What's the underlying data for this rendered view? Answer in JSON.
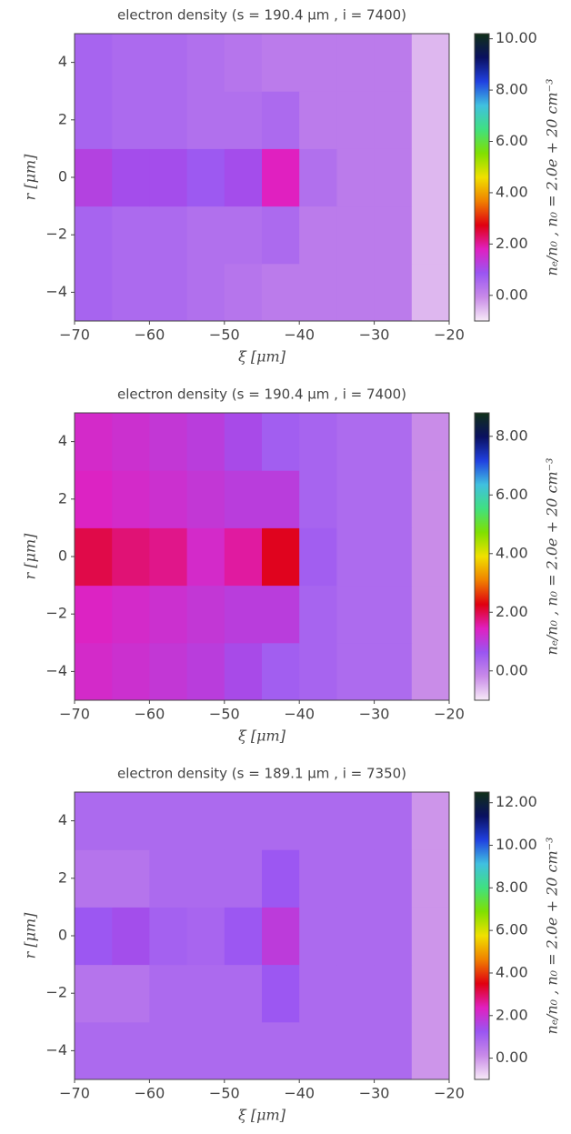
{
  "chart_data": [
    {
      "type": "heatmap",
      "title": "electron density (s = 190.4 μm , i = 7400)",
      "x_label": "ξ [μm]",
      "y_label": "r [μm]",
      "colorbar_label": "nₑ/n₀ , n₀ = 2.0e + 20 cm⁻³",
      "x": [
        -67.5,
        -62.5,
        -57.5,
        -52.5,
        -47.5,
        -42.5,
        -37.5,
        -32.5,
        -27.5,
        -22.5
      ],
      "y": [
        -4,
        -2,
        0,
        2,
        4
      ],
      "z": [
        [
          0.6,
          0.5,
          0.5,
          0.4,
          0.3,
          0.2,
          0.2,
          0.2,
          0.2,
          -0.5
        ],
        [
          0.6,
          0.5,
          0.5,
          0.4,
          0.4,
          0.5,
          0.2,
          0.2,
          0.2,
          -0.5
        ],
        [
          1.2,
          1.0,
          1.0,
          0.8,
          1.0,
          1.8,
          0.4,
          0.2,
          0.2,
          -0.5
        ],
        [
          0.6,
          0.5,
          0.5,
          0.4,
          0.4,
          0.5,
          0.2,
          0.2,
          0.2,
          -0.5
        ],
        [
          0.6,
          0.5,
          0.5,
          0.4,
          0.3,
          0.2,
          0.2,
          0.2,
          0.2,
          -0.5
        ]
      ],
      "xlim": [
        -70,
        -20
      ],
      "ylim": [
        -5,
        5
      ],
      "clim": [
        -1,
        10.2
      ],
      "xticks": [
        {
          "value": -70,
          "label": "−70"
        },
        {
          "value": -60,
          "label": "−60"
        },
        {
          "value": -50,
          "label": "−50"
        },
        {
          "value": -40,
          "label": "−40"
        },
        {
          "value": -30,
          "label": "−30"
        },
        {
          "value": -20,
          "label": "−20"
        }
      ],
      "yticks": [
        {
          "value": -4,
          "label": "−4"
        },
        {
          "value": -2,
          "label": "−2"
        },
        0,
        2,
        4
      ],
      "cticks": [
        {
          "value": 0,
          "label": "0.00"
        },
        {
          "value": 2,
          "label": "2.00"
        },
        {
          "value": 4,
          "label": "4.00"
        },
        {
          "value": 6,
          "label": "6.00"
        },
        {
          "value": 8,
          "label": "8.00"
        },
        {
          "value": 10,
          "label": "10.00"
        }
      ],
      "colorscale": [
        "#f7eaf7",
        "#c88ae8",
        "#9a55f2",
        "#e020c0",
        "#e00010",
        "#f08000",
        "#f0e000",
        "#80e000",
        "#40e080",
        "#40c0e0",
        "#2040e0",
        "#0a1060",
        "#103018"
      ]
    },
    {
      "type": "heatmap",
      "title": "electron density (s = 190.4 μm , i = 7400)",
      "x_label": "ξ [μm]",
      "y_label": "r [μm]",
      "colorbar_label": "nₑ/n₀ , n₀ = 2.0e + 20 cm⁻³",
      "x": [
        -67.5,
        -62.5,
        -57.5,
        -52.5,
        -47.5,
        -42.5,
        -37.5,
        -32.5,
        -27.5,
        -22.5
      ],
      "y": [
        -4,
        -2,
        0,
        2,
        4
      ],
      "z": [
        [
          1.3,
          1.2,
          1.1,
          1.0,
          0.8,
          0.5,
          0.4,
          0.3,
          0.3,
          -0.2
        ],
        [
          1.4,
          1.3,
          1.2,
          1.1,
          1.0,
          1.0,
          0.4,
          0.3,
          0.3,
          -0.2
        ],
        [
          2.0,
          1.8,
          1.7,
          1.3,
          1.6,
          2.2,
          0.5,
          0.3,
          0.3,
          -0.2
        ],
        [
          1.4,
          1.3,
          1.2,
          1.1,
          1.0,
          1.0,
          0.4,
          0.3,
          0.3,
          -0.2
        ],
        [
          1.3,
          1.2,
          1.1,
          1.0,
          0.8,
          0.5,
          0.4,
          0.3,
          0.3,
          -0.2
        ]
      ],
      "xlim": [
        -70,
        -20
      ],
      "ylim": [
        -5,
        5
      ],
      "clim": [
        -1,
        8.8
      ],
      "xticks": [
        {
          "value": -70,
          "label": "−70"
        },
        {
          "value": -60,
          "label": "−60"
        },
        {
          "value": -50,
          "label": "−50"
        },
        {
          "value": -40,
          "label": "−40"
        },
        {
          "value": -30,
          "label": "−30"
        },
        {
          "value": -20,
          "label": "−20"
        }
      ],
      "yticks": [
        {
          "value": -4,
          "label": "−4"
        },
        {
          "value": -2,
          "label": "−2"
        },
        0,
        2,
        4
      ],
      "cticks": [
        {
          "value": 0,
          "label": "0.00"
        },
        {
          "value": 2,
          "label": "2.00"
        },
        {
          "value": 4,
          "label": "4.00"
        },
        {
          "value": 6,
          "label": "6.00"
        },
        {
          "value": 8,
          "label": "8.00"
        }
      ],
      "colorscale": [
        "#f7eaf7",
        "#c88ae8",
        "#9a55f2",
        "#e020c0",
        "#e00010",
        "#f08000",
        "#f0e000",
        "#80e000",
        "#40e080",
        "#40c0e0",
        "#2040e0",
        "#0a1060",
        "#103018"
      ]
    },
    {
      "type": "heatmap",
      "title": "electron density (s = 189.1 μm , i = 7350)",
      "x_label": "ξ [μm]",
      "y_label": "r [μm]",
      "colorbar_label": "nₑ/n₀ , n₀ = 2.0e + 20 cm⁻³",
      "x": [
        -67.5,
        -62.5,
        -57.5,
        -52.5,
        -47.5,
        -42.5,
        -37.5,
        -32.5,
        -27.5,
        -22.5
      ],
      "y": [
        -4,
        -2,
        0,
        2,
        4
      ],
      "z": [
        [
          0.8,
          0.8,
          0.8,
          0.8,
          0.8,
          0.8,
          0.8,
          0.8,
          0.8,
          0
        ],
        [
          0.6,
          0.6,
          0.8,
          0.8,
          0.8,
          1.2,
          0.8,
          0.8,
          0.8,
          0
        ],
        [
          1.2,
          1.4,
          1.0,
          0.9,
          1.2,
          1.8,
          0.8,
          0.8,
          0.8,
          0
        ],
        [
          0.6,
          0.6,
          0.8,
          0.8,
          0.8,
          1.2,
          0.8,
          0.8,
          0.8,
          0
        ],
        [
          0.8,
          0.8,
          0.8,
          0.8,
          0.8,
          0.8,
          0.8,
          0.8,
          0.8,
          0
        ]
      ],
      "xlim": [
        -70,
        -20
      ],
      "ylim": [
        -5,
        5
      ],
      "clim": [
        -1,
        12.5
      ],
      "xticks": [
        {
          "value": -70,
          "label": "−70"
        },
        {
          "value": -60,
          "label": "−60"
        },
        {
          "value": -50,
          "label": "−50"
        },
        {
          "value": -40,
          "label": "−40"
        },
        {
          "value": -30,
          "label": "−30"
        },
        {
          "value": -20,
          "label": "−20"
        }
      ],
      "yticks": [
        {
          "value": -4,
          "label": "−4"
        },
        {
          "value": -2,
          "label": "−2"
        },
        0,
        2,
        4
      ],
      "cticks": [
        {
          "value": 0,
          "label": "0.00"
        },
        {
          "value": 2,
          "label": "2.00"
        },
        {
          "value": 4,
          "label": "4.00"
        },
        {
          "value": 6,
          "label": "6.00"
        },
        {
          "value": 8,
          "label": "8.00"
        },
        {
          "value": 10,
          "label": "10.00"
        },
        {
          "value": 12,
          "label": "12.00"
        }
      ],
      "colorscale": [
        "#f7eaf7",
        "#c88ae8",
        "#9a55f2",
        "#e020c0",
        "#e00010",
        "#f08000",
        "#f0e000",
        "#80e000",
        "#40e080",
        "#40c0e0",
        "#2040e0",
        "#0a1060",
        "#103018"
      ]
    }
  ]
}
